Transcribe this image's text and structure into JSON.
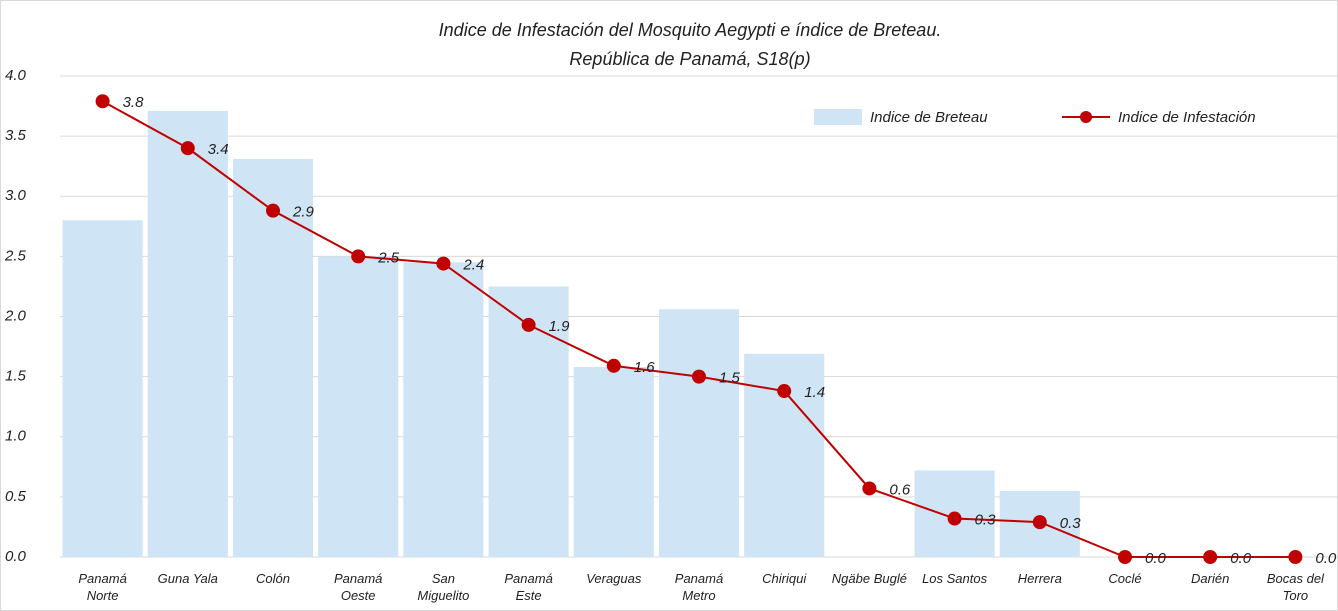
{
  "chart_data": {
    "type": "bar_line",
    "title": [
      "Indice de Infestación del Mosquito Aegypti e índice de Breteau.",
      "República de Panamá, S18(p)"
    ],
    "categories": [
      "Panamá Norte",
      "Guna Yala",
      "Colón",
      "Panamá Oeste",
      "San Miguelito",
      "Panamá Este",
      "Veraguas",
      "Panamá Metro",
      "Chiriqui",
      "Ngäbe Buglé",
      "Los Santos",
      "Herrera",
      "Coclé",
      "Darién",
      "Bocas del Toro"
    ],
    "series": [
      {
        "name": "Indice de Breteau",
        "type": "bar",
        "color": "#cfe4f4",
        "values": [
          2.8,
          3.71,
          3.31,
          2.5,
          2.45,
          2.25,
          1.58,
          2.06,
          1.69,
          0,
          0.72,
          0.55,
          0,
          0,
          0
        ]
      },
      {
        "name": "Indice de Infestación",
        "type": "line",
        "color": "#c00000",
        "values": [
          3.79,
          3.4,
          2.88,
          2.5,
          2.44,
          1.93,
          1.59,
          1.5,
          1.38,
          0.57,
          0.32,
          0.29,
          0,
          0,
          0
        ],
        "value_labels": [
          "3.8",
          "3.4",
          "2.9",
          "2.5",
          "2.4",
          "1.9",
          "1.6",
          "1.5",
          "1.4",
          "0.6",
          "0.3",
          "0.3",
          "0.0",
          "0.0",
          "0.0"
        ]
      }
    ],
    "ylim": [
      0,
      4
    ],
    "yticks": [
      {
        "value": 0,
        "label": "0.0"
      },
      {
        "value": 0.5,
        "label": "0.5"
      },
      {
        "value": 1,
        "label": "1.0"
      },
      {
        "value": 1.5,
        "label": "1.5"
      },
      {
        "value": 2,
        "label": "2.0"
      },
      {
        "value": 2.5,
        "label": "2.5"
      },
      {
        "value": 3,
        "label": "3.0"
      },
      {
        "value": 3.5,
        "label": "3.5"
      },
      {
        "value": 4,
        "label": "4.0"
      }
    ],
    "grid": true,
    "legend": "top-right"
  }
}
